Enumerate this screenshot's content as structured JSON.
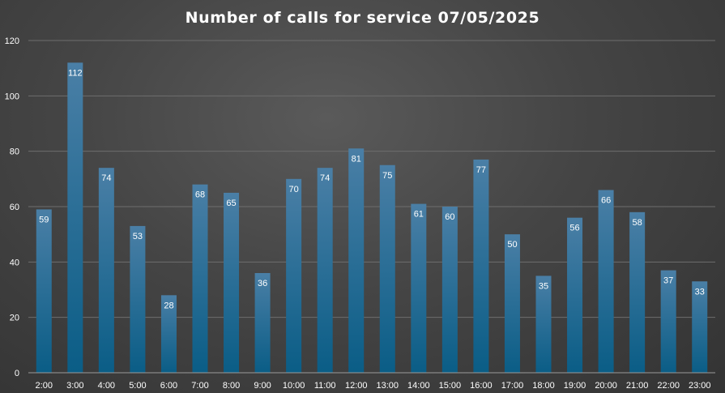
{
  "chart_data": {
    "type": "bar",
    "title": "Number of calls for service 07/05/2025",
    "xlabel": "",
    "ylabel": "",
    "categories": [
      "2:00",
      "3:00",
      "4:00",
      "5:00",
      "6:00",
      "7:00",
      "8:00",
      "9:00",
      "10:00",
      "11:00",
      "12:00",
      "13:00",
      "14:00",
      "15:00",
      "16:00",
      "17:00",
      "18:00",
      "19:00",
      "20:00",
      "21:00",
      "22:00",
      "23:00"
    ],
    "values": [
      59,
      112,
      74,
      53,
      28,
      68,
      65,
      36,
      70,
      74,
      81,
      75,
      61,
      60,
      77,
      50,
      35,
      56,
      66,
      58,
      37,
      33
    ],
    "ylim": [
      0,
      120
    ],
    "yticks": [
      0,
      20,
      40,
      60,
      80,
      100,
      120
    ],
    "grid": true,
    "legend": "none",
    "data_labels": true,
    "colors": {
      "bar_top": "#4a7fa6",
      "bar_bottom": "#0a5d86",
      "text": "#ffffff",
      "grid": "#6e6e6e"
    }
  }
}
